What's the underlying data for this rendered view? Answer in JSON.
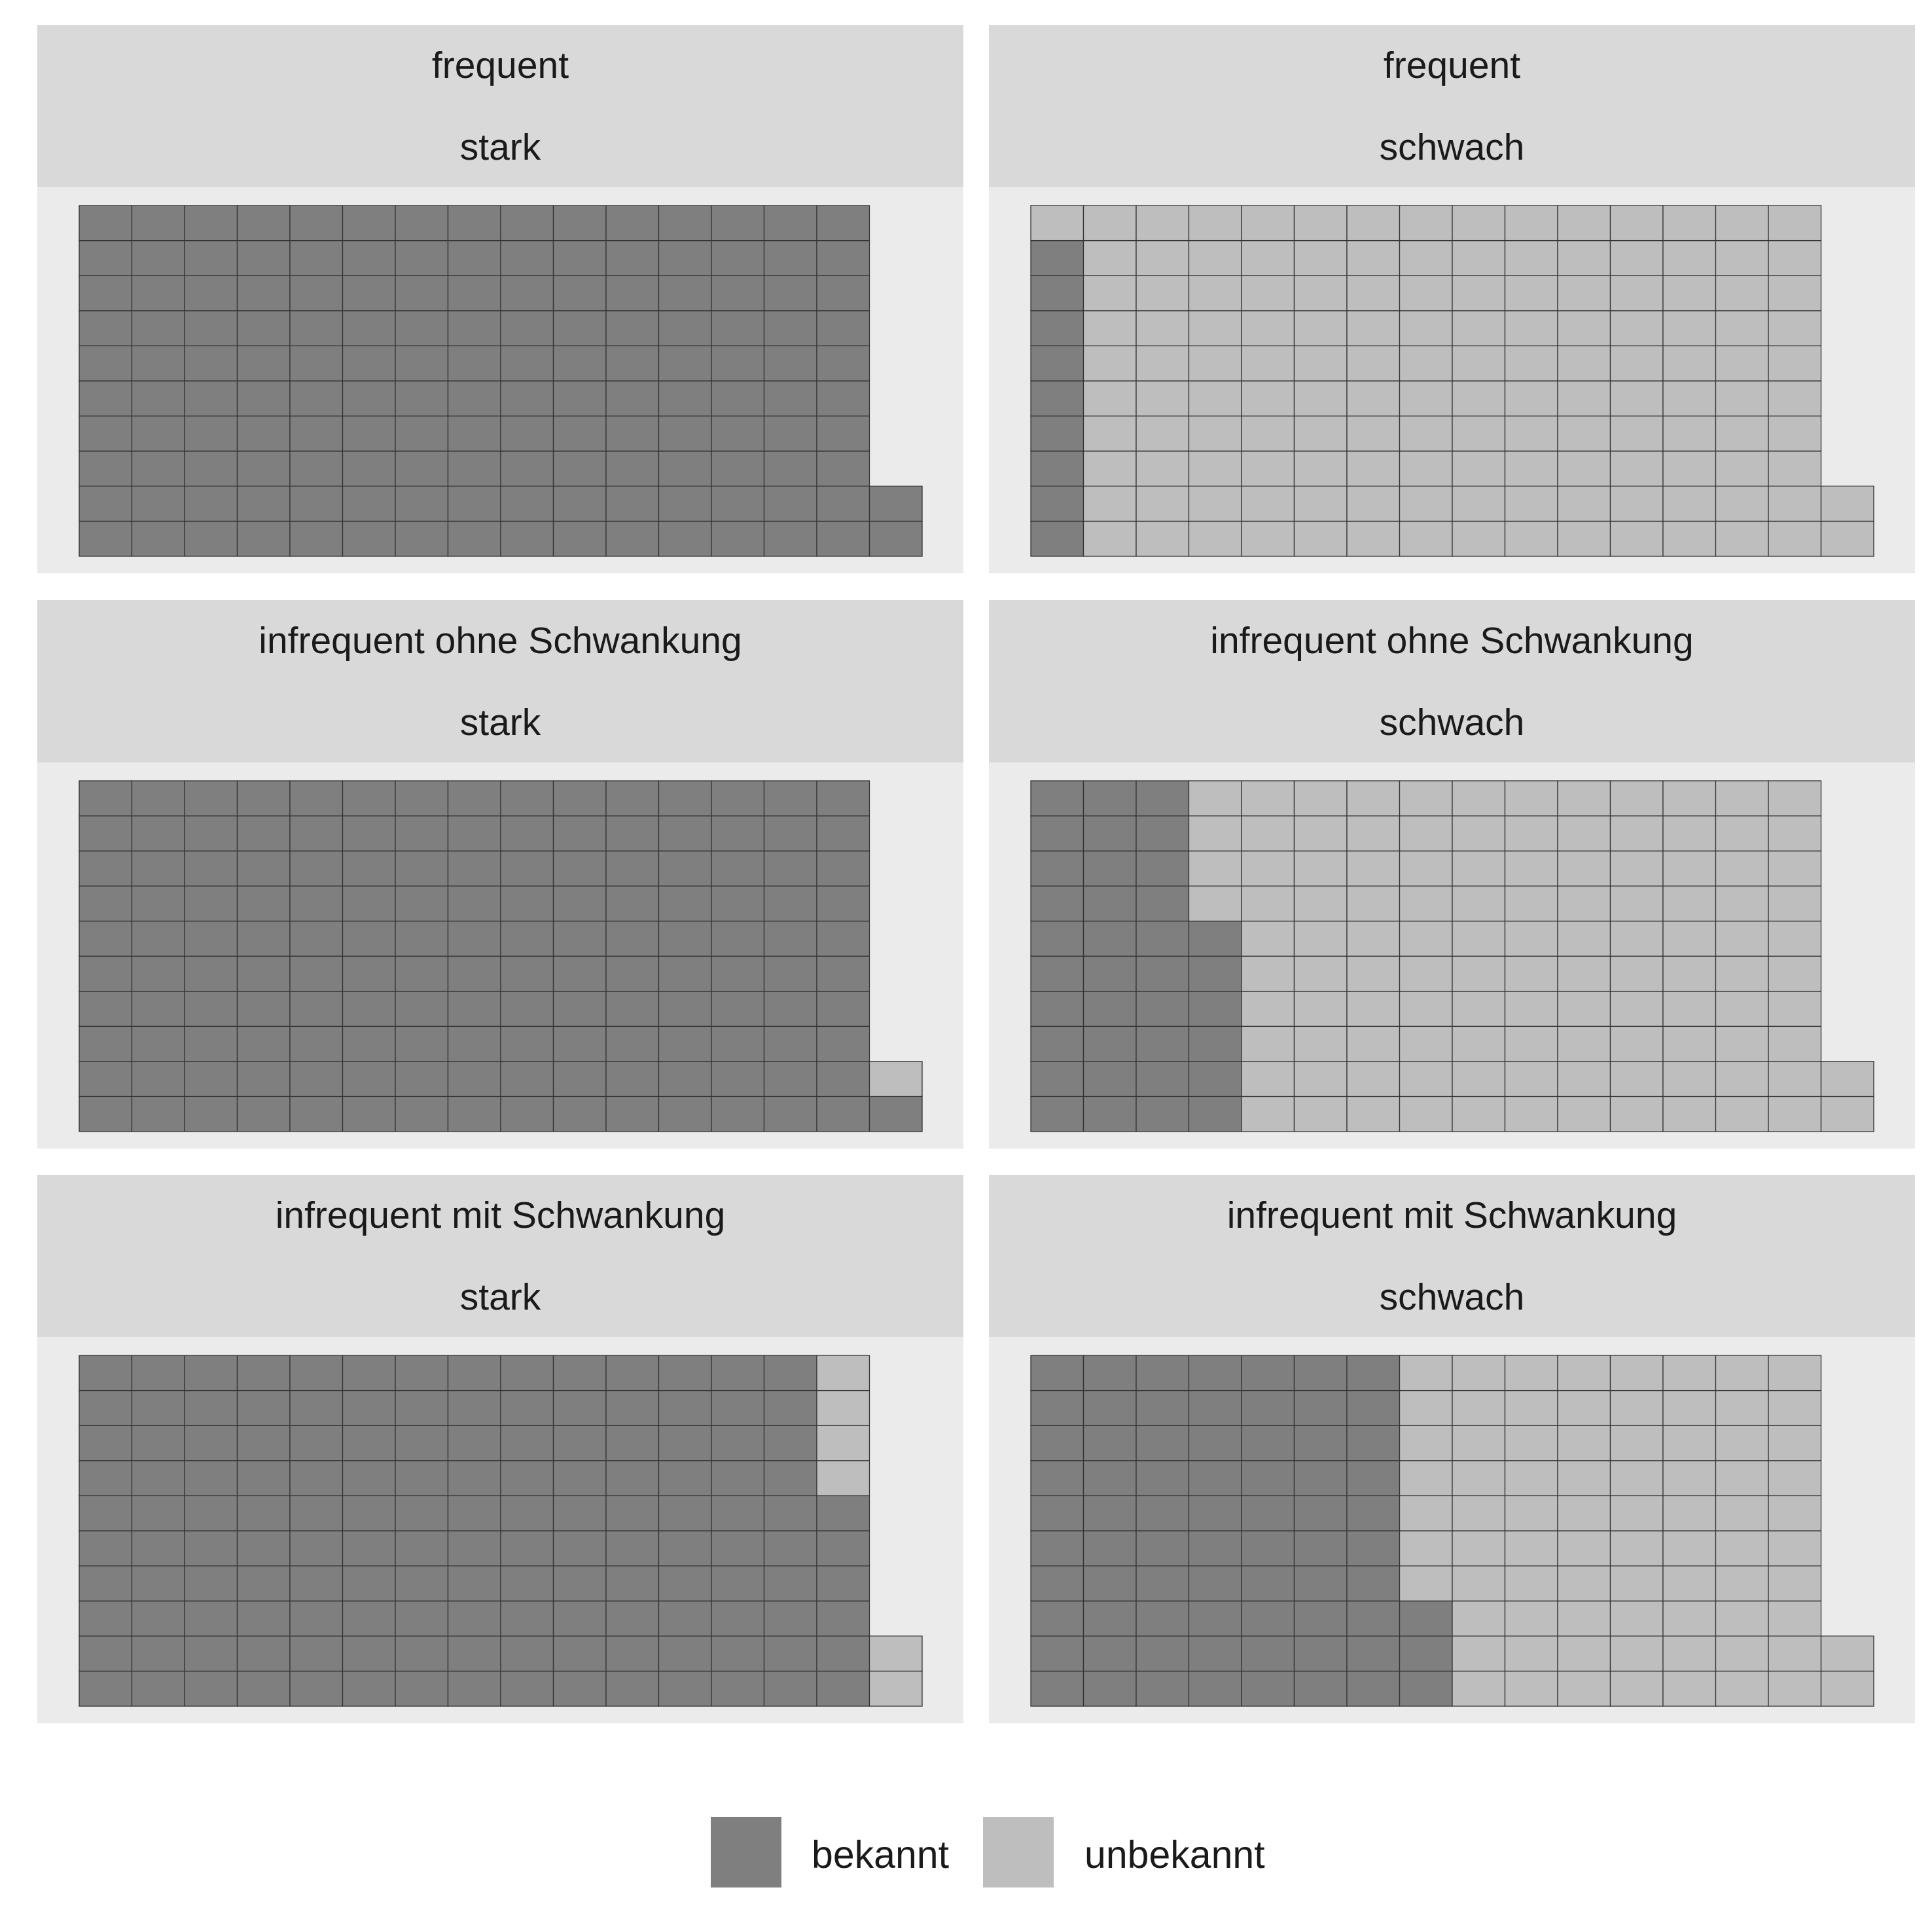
{
  "chart_data": {
    "type": "waffle",
    "colors": {
      "bekannt": "#7f7f7f",
      "unbekannt": "#bebebe",
      "cell_border": "#333333",
      "panel_background": "#ebebeb",
      "strip_background": "#d9d9d9"
    },
    "grid": {
      "rows": 10,
      "fill_order": "column-wise from bottom-left"
    },
    "legend": {
      "position": "bottom",
      "items": [
        {
          "key": "bekannt",
          "label": "bekannt"
        },
        {
          "key": "unbekannt",
          "label": "unbekannt"
        }
      ]
    },
    "panels": [
      {
        "title": "frequent",
        "subtitle": "stark",
        "bekannt": 152,
        "unbekannt": 0
      },
      {
        "title": "frequent",
        "subtitle": "schwach",
        "bekannt": 9,
        "unbekannt": 143
      },
      {
        "title": "infrequent ohne Schwankung",
        "subtitle": "stark",
        "bekannt": 151,
        "unbekannt": 1
      },
      {
        "title": "infrequent ohne Schwankung",
        "subtitle": "schwach",
        "bekannt": 36,
        "unbekannt": 116
      },
      {
        "title": "infrequent mit Schwankung",
        "subtitle": "stark",
        "bekannt": 146,
        "unbekannt": 6
      },
      {
        "title": "infrequent mit Schwankung",
        "subtitle": "schwach",
        "bekannt": 73,
        "unbekannt": 79
      }
    ]
  }
}
